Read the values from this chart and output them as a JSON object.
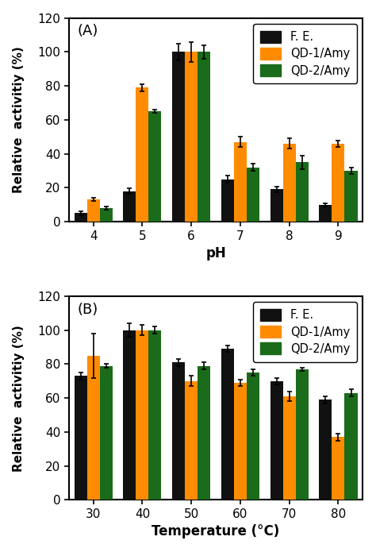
{
  "panel_A": {
    "label": "(A)",
    "xlabel": "pH",
    "ylabel": "Relative  activitiy (%)",
    "categories": [
      "4",
      "5",
      "6",
      "7",
      "8",
      "9"
    ],
    "ylim": [
      0,
      120
    ],
    "yticks": [
      0,
      20,
      40,
      60,
      80,
      100,
      120
    ],
    "series": {
      "F. E.": {
        "values": [
          5,
          18,
          100,
          25,
          19,
          10
        ],
        "errors": [
          1,
          1.5,
          5,
          2,
          1.5,
          1
        ],
        "color": "#111111"
      },
      "QD-1/Amy": {
        "values": [
          13,
          79,
          100,
          47,
          46,
          46
        ],
        "errors": [
          1,
          2,
          6,
          3,
          3,
          2
        ],
        "color": "#FF8C00"
      },
      "QD-2/Amy": {
        "values": [
          8,
          65,
          100,
          32,
          35,
          30
        ],
        "errors": [
          1,
          1,
          4,
          2,
          4,
          2
        ],
        "color": "#1a6b1a"
      }
    }
  },
  "panel_B": {
    "label": "(B)",
    "xlabel": "Temperature (°C)",
    "ylabel": "Relative  activitiy (%)",
    "categories": [
      "30",
      "40",
      "50",
      "60",
      "70",
      "80"
    ],
    "ylim": [
      0,
      120
    ],
    "yticks": [
      0,
      20,
      40,
      60,
      80,
      100,
      120
    ],
    "series": {
      "F. E.": {
        "values": [
          73,
          100,
          81,
          89,
          70,
          59
        ],
        "errors": [
          2,
          4,
          2,
          2,
          2,
          2
        ],
        "color": "#111111"
      },
      "QD-1/Amy": {
        "values": [
          85,
          100,
          70,
          69,
          61,
          37
        ],
        "errors": [
          13,
          3,
          3,
          2,
          3,
          2
        ],
        "color": "#FF8C00"
      },
      "QD-2/Amy": {
        "values": [
          79,
          100,
          79,
          75,
          77,
          63
        ],
        "errors": [
          1,
          2,
          2,
          2,
          1,
          2
        ],
        "color": "#1a6b1a"
      }
    }
  },
  "legend_colors": [
    "#111111",
    "#FF8C00",
    "#1a6b1a"
  ],
  "bar_width": 0.26,
  "background_color": "#ffffff",
  "label_fontsize": 12,
  "tick_fontsize": 11,
  "legend_fontsize": 10.5
}
